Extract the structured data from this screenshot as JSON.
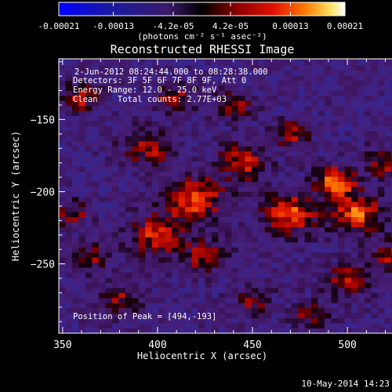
{
  "chart_data": {
    "type": "heatmap",
    "title": "Reconstructed RHESSI Image",
    "xlabel": "Heliocentric X (arcsec)",
    "ylabel": "Heliocentric Y (arcsec)",
    "xlim": [
      348,
      540
    ],
    "ylim": [
      -298,
      -108
    ],
    "x_ticks": [
      350,
      400,
      450,
      500
    ],
    "y_ticks": [
      -250,
      -200,
      -150
    ],
    "colorbar": {
      "ticks": [
        "-0.00021",
        "-0.00013",
        "-4.2e-05",
        "4.2e-05",
        "0.00013",
        "0.00021"
      ],
      "tick_values": [
        -0.00021,
        -0.00013,
        -4.2e-05,
        4.2e-05,
        0.00013,
        0.00021
      ],
      "range": [
        -0.00021,
        0.00021
      ],
      "unit_label": "(photons cm⁻² s⁻¹ asec⁻²)"
    },
    "annotations": [
      "2-Jun-2012 08:24:44.000 to 08:28:38.000",
      "Detectors: 3F 5F 6F 7F 8F 9F, Att 0",
      "Energy Range: 12.0 - 25.0 keV",
      "Clean    Total counts: 2.77E+03"
    ],
    "peak_label": "Position of Peak = [494,-193]",
    "peak": [
      494,
      -193
    ],
    "grid": false
  },
  "footer": {
    "timestamp": "10-May-2014 14:23"
  }
}
